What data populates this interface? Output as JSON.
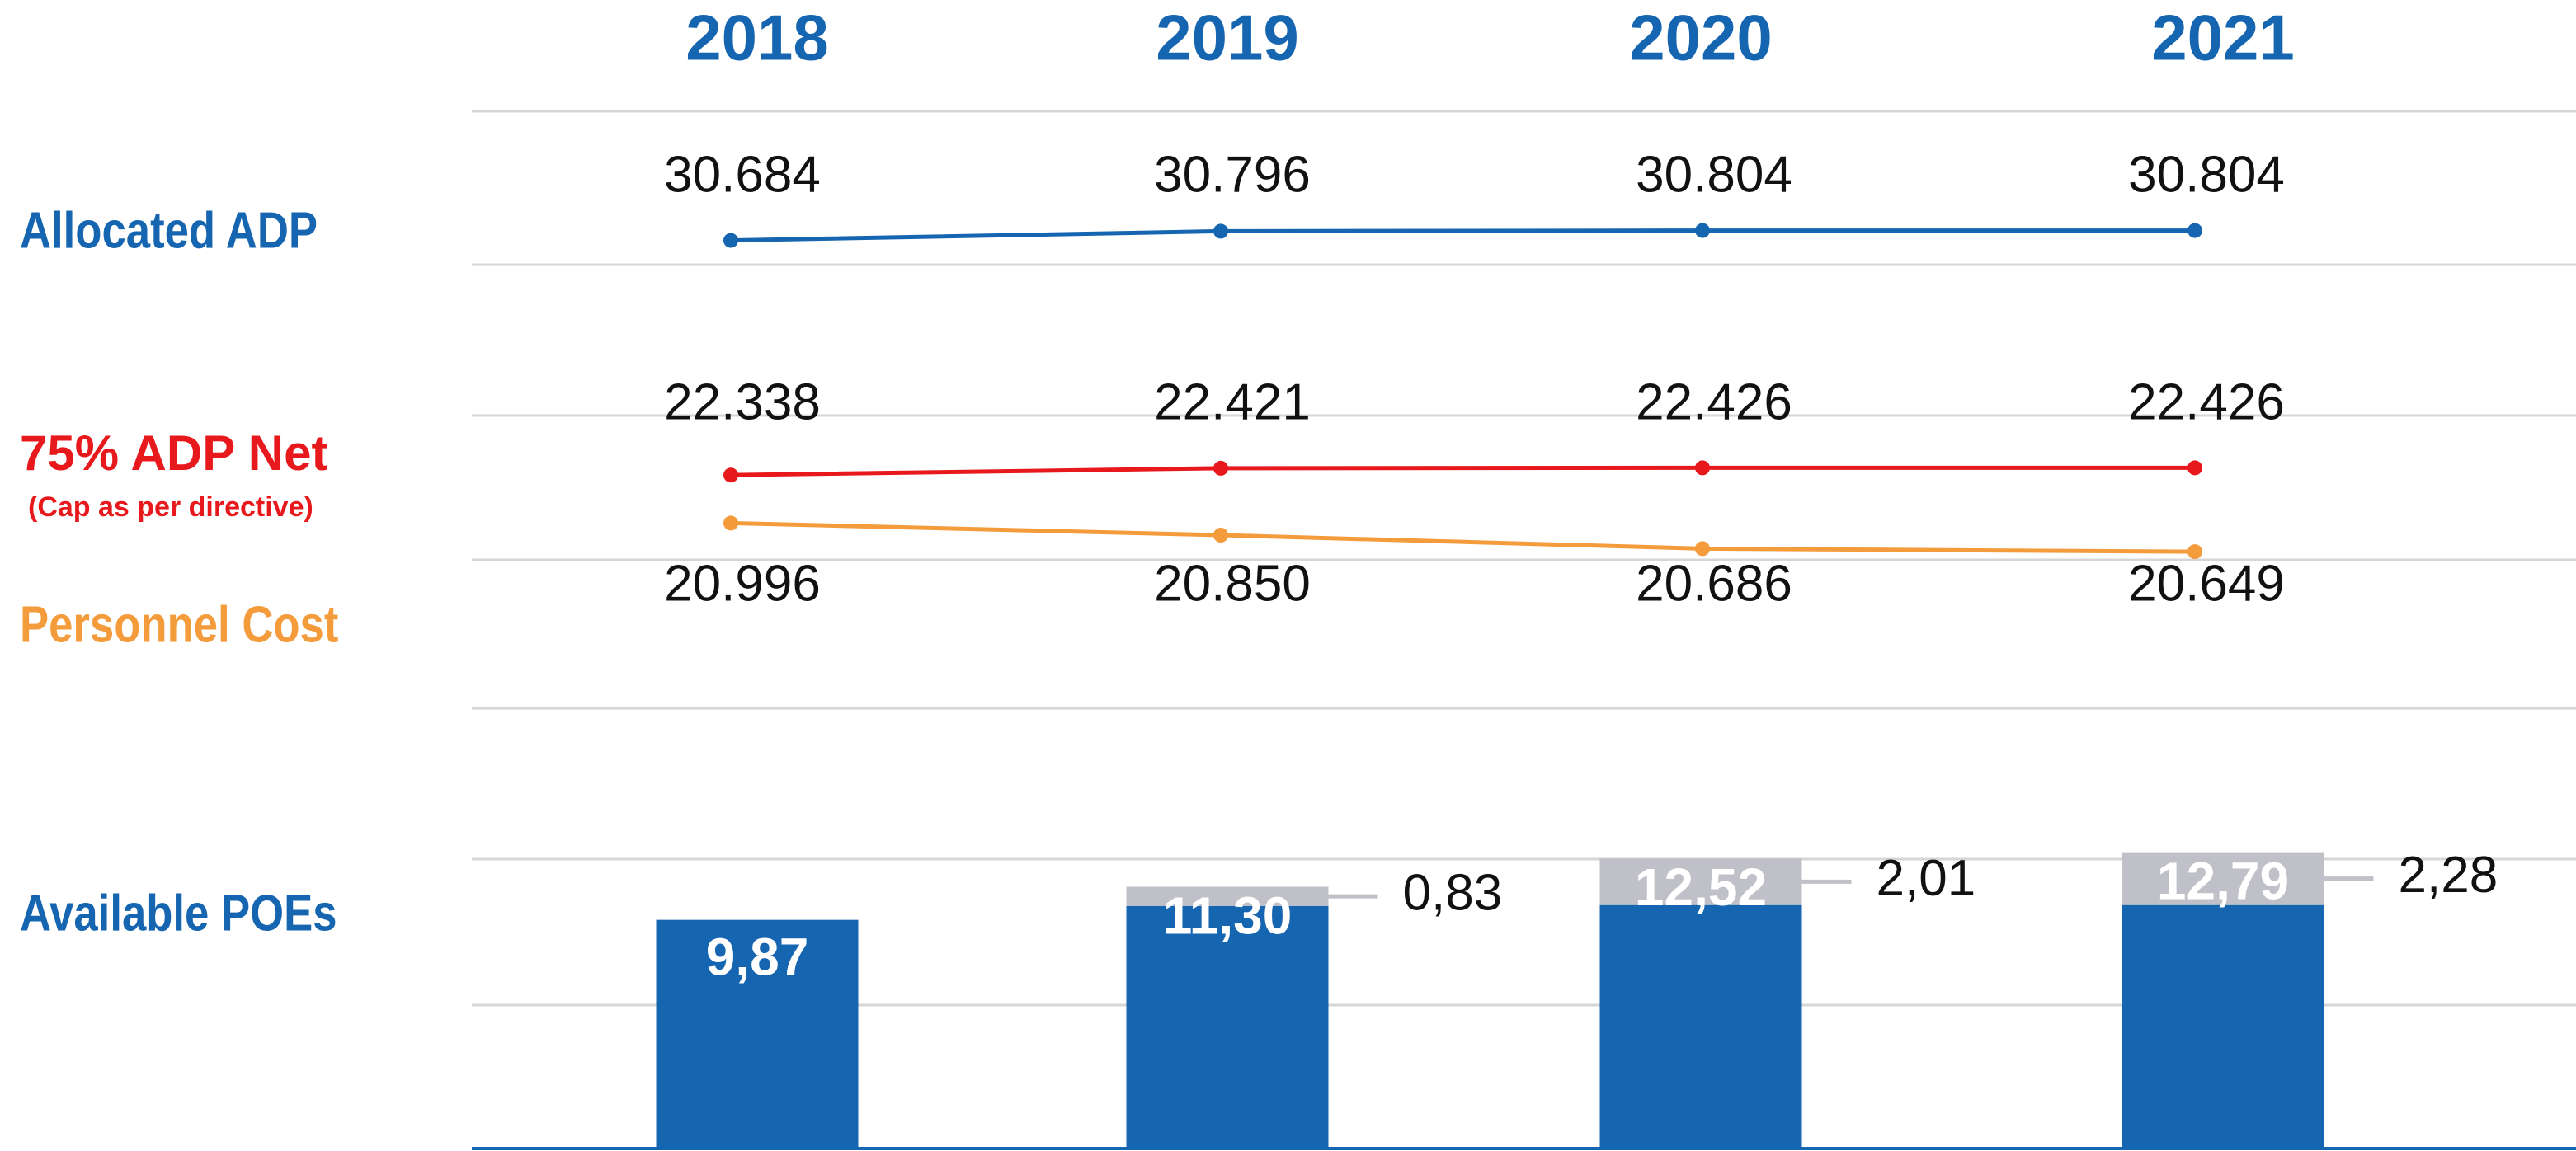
{
  "chart_data": {
    "type": "combo",
    "categories": [
      "2018",
      "2019",
      "2020",
      "2021"
    ],
    "series": [
      {
        "name": "Allocated ADP",
        "type": "line",
        "color": "#1565b0",
        "values": [
          30.684,
          30.796,
          30.804,
          30.804
        ],
        "value_labels": [
          "30.684",
          "30.796",
          "30.804",
          "30.804"
        ],
        "ylim": [
          30,
          31.5
        ]
      },
      {
        "name": "75% ADP Net",
        "sublabel": "(Cap as per directive)",
        "type": "line",
        "color": "#e8191c",
        "values": [
          22.338,
          22.421,
          22.426,
          22.426
        ],
        "value_labels": [
          "22.338",
          "22.421",
          "22.426",
          "22.426"
        ],
        "ylim": [
          21.5,
          23
        ]
      },
      {
        "name": "Personnel Cost",
        "type": "line",
        "color": "#f49b3c",
        "values": [
          20.996,
          20.85,
          20.686,
          20.649
        ],
        "value_labels": [
          "20.996",
          "20.850",
          "20.686",
          "20.649"
        ],
        "ylim": [
          19,
          22
        ]
      },
      {
        "name": "Available POEs",
        "type": "bar",
        "color": "#1565b0",
        "values": [
          9.87,
          10.47,
          10.51,
          10.51
        ],
        "extra_values": [
          null,
          0.83,
          2.01,
          2.28
        ],
        "extra_labels": [
          null,
          "0,83",
          "2,01",
          "2,28"
        ],
        "extra_color": "#c0c0c8",
        "totals": [
          9.87,
          11.3,
          12.52,
          12.79
        ],
        "total_labels": [
          "9,87",
          "11,30",
          "12,52",
          "12,79"
        ],
        "ylim": [
          0,
          20
        ]
      }
    ]
  }
}
